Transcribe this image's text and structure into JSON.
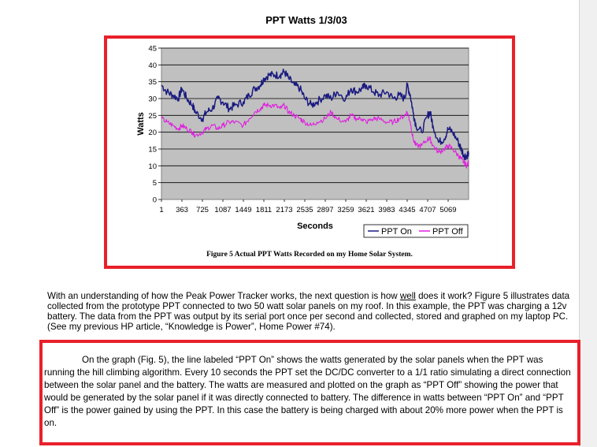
{
  "chart_data": {
    "type": "line",
    "title": "PPT Watts 1/3/03",
    "xlabel": "Seconds",
    "ylabel": "Watts",
    "ylim": [
      0,
      45
    ],
    "yticks": [
      0,
      5,
      10,
      15,
      20,
      25,
      30,
      35,
      40,
      45
    ],
    "xtick_labels": [
      "1",
      "363",
      "725",
      "1087",
      "1449",
      "1811",
      "2173",
      "2535",
      "2897",
      "3259",
      "3621",
      "3983",
      "4345",
      "4707",
      "5069"
    ],
    "xlim": [
      1,
      5431
    ],
    "grid": true,
    "legend_position": "bottom-right",
    "series": [
      {
        "name": "PPT On",
        "color": "#1a1a80",
        "x": [
          1,
          100,
          200,
          300,
          363,
          450,
          550,
          600,
          725,
          800,
          900,
          1000,
          1087,
          1200,
          1300,
          1449,
          1550,
          1650,
          1750,
          1811,
          1900,
          2000,
          2100,
          2173,
          2250,
          2350,
          2450,
          2535,
          2650,
          2750,
          2897,
          3000,
          3100,
          3259,
          3350,
          3450,
          3550,
          3621,
          3750,
          3850,
          3983,
          4100,
          4200,
          4300,
          4345,
          4400,
          4450,
          4500,
          4600,
          4707,
          4750,
          4800,
          4900,
          5000,
          5069,
          5150,
          5250,
          5300,
          5350,
          5400,
          5431
        ],
        "values": [
          34,
          32,
          31,
          30,
          33,
          30,
          28,
          26,
          24,
          26,
          27,
          30,
          29,
          27,
          28,
          29,
          31,
          33,
          34,
          36,
          37,
          37,
          37,
          38,
          36,
          34,
          33,
          30,
          28,
          29,
          31,
          30,
          32,
          30,
          33,
          32,
          33,
          34,
          32,
          31,
          32,
          30,
          31,
          30,
          34,
          31,
          26,
          22,
          20,
          25,
          26,
          22,
          17,
          18,
          21,
          20,
          17,
          15,
          13,
          13,
          14
        ]
      },
      {
        "name": "PPT Off",
        "color": "#e020e0",
        "x": [
          1,
          100,
          200,
          300,
          363,
          450,
          550,
          600,
          725,
          800,
          900,
          1000,
          1087,
          1200,
          1300,
          1449,
          1550,
          1650,
          1750,
          1811,
          1900,
          2000,
          2100,
          2173,
          2250,
          2350,
          2450,
          2535,
          2650,
          2750,
          2897,
          3000,
          3100,
          3259,
          3350,
          3450,
          3550,
          3621,
          3750,
          3850,
          3983,
          4100,
          4200,
          4300,
          4345,
          4400,
          4450,
          4500,
          4600,
          4707,
          4750,
          4800,
          4900,
          5000,
          5069,
          5150,
          5250,
          5300,
          5350,
          5400,
          5431
        ],
        "values": [
          24,
          23,
          22,
          21,
          22,
          21,
          20,
          19,
          20,
          21,
          22,
          21,
          22,
          23,
          23,
          22,
          24,
          26,
          27,
          28,
          28,
          28,
          27,
          28,
          26,
          25,
          24,
          23,
          22,
          23,
          24,
          26,
          24,
          23,
          25,
          24,
          24,
          23,
          24,
          24,
          23,
          23,
          24,
          25,
          26,
          23,
          18,
          16,
          16,
          18,
          18,
          16,
          14,
          15,
          16,
          15,
          13,
          12,
          11,
          10,
          11
        ]
      }
    ]
  },
  "figure_caption": "Figure 5 Actual PPT Watts Recorded on my Home Solar System.",
  "body": {
    "para1_a": "With an understanding of how the Peak Power Tracker works, the next question is how ",
    "para1_well": "well",
    "para1_b": " does it work? Figure 5 illustrates data collected from the prototype PPT connected to two 50 watt solar panels on my roof. In this example, the PPT was charging a 12v battery. The data from the PPT was output by its serial port once per second and collected, stored and graphed on my laptop PC. (See my previous HP article, “Knowledge is Power”, Home Power #74).",
    "para2": "On the graph (Fig. 5), the line labeled “PPT On” shows the watts generated by the solar panels when the PPT was running the hill climbing algorithm. Every 10 seconds the PPT set the DC/DC converter to a 1/1 ratio simulating a direct connection between the solar panel and the battery. The watts are measured and plotted on the graph as “PPT Off” showing the power that would be generated by the solar panel if it was directly connected to battery. The difference in watts between “PPT On” and “PPT Off” is the power gained by using the PPT. In this case the battery is being charged with about 20% more power when the PPT is on."
  },
  "colors": {
    "highlight_border": "#e8202a",
    "plot_background": "#c0c0c0"
  }
}
